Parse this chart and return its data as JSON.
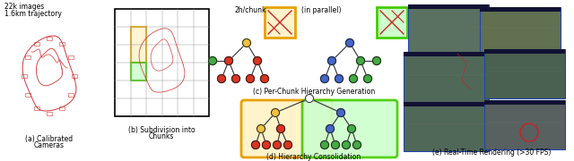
{
  "bg_color": "#ffffff",
  "colors": {
    "node_yellow": "#f0c040",
    "node_red": "#dd3322",
    "node_blue": "#4466cc",
    "node_green": "#44aa44",
    "node_white": "#ffffff",
    "node_dark": "#333333",
    "edge": "#333333",
    "orange_box": "#e8a000",
    "green_box": "#44cc00",
    "photo_border": "#2244bb",
    "traj_red": "#cc2222"
  },
  "text": {
    "info": [
      "22k images",
      "1.6km trajectory"
    ],
    "label_a": "(a) Calibrated\nCameras",
    "label_b": "(b) Subdivision into\nChunks",
    "label_c": "(c) Per-Chunk Hierarchy Generation",
    "label_d": "(d) Hierarchy Consolidation",
    "label_e": "(e) Real-Time Rendering (>30 FPS)",
    "chunk_time": "2h/chunk",
    "in_parallel": "(in parallel)"
  }
}
